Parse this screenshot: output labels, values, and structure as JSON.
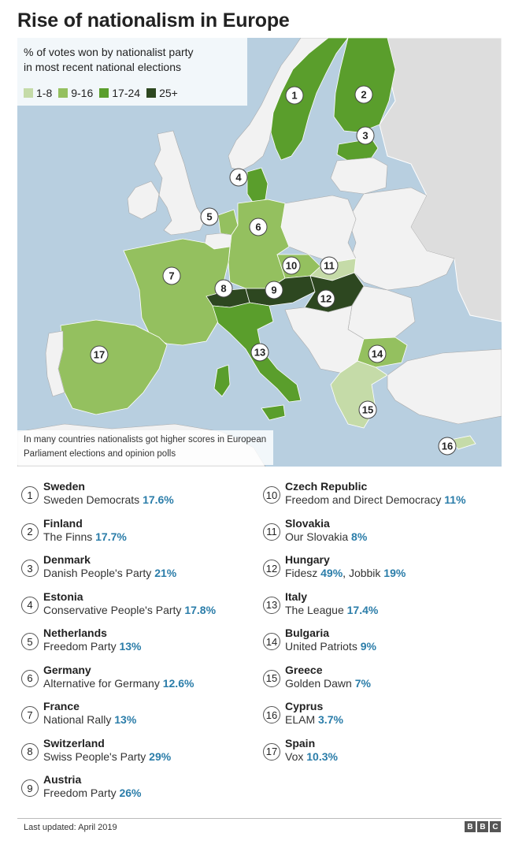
{
  "title": "Rise of nationalism in Europe",
  "legend": {
    "title": "% of votes won by nationalist party\nin most recent national elections",
    "items": [
      {
        "label": "1-8",
        "color": "#c5dba8"
      },
      {
        "label": "9-16",
        "color": "#94c05f"
      },
      {
        "label": "17-24",
        "color": "#5a9e2c"
      },
      {
        "label": "25+",
        "color": "#2d4720"
      }
    ]
  },
  "map_note": "In many countries nationalists got higher scores in European Parliament elections and opinion polls",
  "colors": {
    "sea": "#b8cfe0",
    "land": "#f2f2f2",
    "outside": "#dddddd",
    "pct_text": "#2b7da9"
  },
  "countries": [
    {
      "num": "1",
      "name": "Sweden",
      "parties": [
        {
          "party": "Sweden Democrats",
          "pct": "17.6%"
        }
      ]
    },
    {
      "num": "2",
      "name": "Finland",
      "parties": [
        {
          "party": "The Finns",
          "pct": "17.7%"
        }
      ]
    },
    {
      "num": "3",
      "name": "Denmark",
      "parties": [
        {
          "party": "Danish People's Party",
          "pct": "21%"
        }
      ]
    },
    {
      "num": "4",
      "name": "Estonia",
      "parties": [
        {
          "party": "Conservative People's Party",
          "pct": "17.8%"
        }
      ]
    },
    {
      "num": "5",
      "name": "Netherlands",
      "parties": [
        {
          "party": "Freedom Party",
          "pct": "13%"
        }
      ]
    },
    {
      "num": "6",
      "name": "Germany",
      "parties": [
        {
          "party": "Alternative for Germany",
          "pct": "12.6%"
        }
      ]
    },
    {
      "num": "7",
      "name": "France",
      "parties": [
        {
          "party": "National Rally",
          "pct": "13%"
        }
      ]
    },
    {
      "num": "8",
      "name": "Switzerland",
      "parties": [
        {
          "party": "Swiss People's Party",
          "pct": "29%"
        }
      ]
    },
    {
      "num": "9",
      "name": "Austria",
      "parties": [
        {
          "party": "Freedom Party",
          "pct": "26%"
        }
      ]
    },
    {
      "num": "10",
      "name": "Czech Republic",
      "parties": [
        {
          "party": "Freedom and Direct Democracy",
          "pct": "11%"
        }
      ]
    },
    {
      "num": "11",
      "name": "Slovakia",
      "parties": [
        {
          "party": "Our Slovakia",
          "pct": "8%"
        }
      ]
    },
    {
      "num": "12",
      "name": "Hungary",
      "parties": [
        {
          "party": "Fidesz",
          "pct": "49%"
        },
        {
          "party": "Jobbik",
          "pct": "19%"
        }
      ]
    },
    {
      "num": "13",
      "name": "Italy",
      "parties": [
        {
          "party": "The League",
          "pct": "17.4%"
        }
      ]
    },
    {
      "num": "14",
      "name": "Bulgaria",
      "parties": [
        {
          "party": "United Patriots",
          "pct": "9%"
        }
      ]
    },
    {
      "num": "15",
      "name": "Greece",
      "parties": [
        {
          "party": "Golden Dawn",
          "pct": "7%"
        }
      ]
    },
    {
      "num": "16",
      "name": "Cyprus",
      "parties": [
        {
          "party": "ELAM",
          "pct": "3.7%"
        }
      ]
    },
    {
      "num": "17",
      "name": "Spain",
      "parties": [
        {
          "party": "Vox",
          "pct": "10.3%"
        }
      ]
    }
  ],
  "footer": {
    "updated": "Last updated: April 2019",
    "logo_letters": [
      "B",
      "B",
      "C"
    ]
  }
}
